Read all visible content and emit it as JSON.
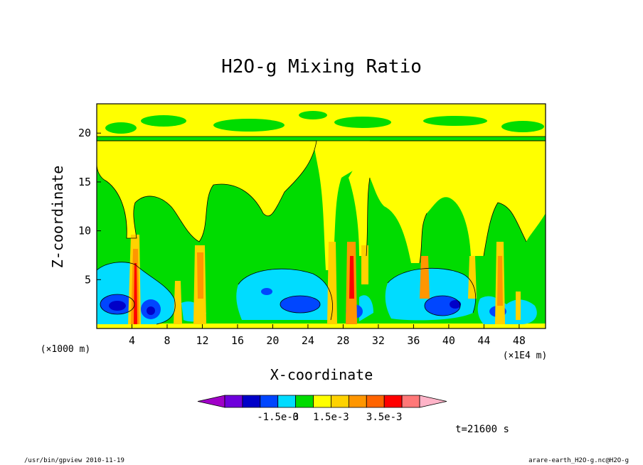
{
  "chart_data": {
    "type": "heatmap",
    "title": "H2O-g Mixing Ratio",
    "xlabel": "X-coordinate",
    "ylabel": "Z-coordinate",
    "y_unit_label": "(×1000 m)",
    "x_unit_label": "(×1E4 m)",
    "x_ticks": [
      4,
      8,
      12,
      16,
      20,
      24,
      28,
      32,
      36,
      40,
      44,
      48
    ],
    "y_ticks": [
      5,
      10,
      15,
      20
    ],
    "xlim": [
      0,
      51
    ],
    "ylim": [
      0,
      23
    ],
    "time_label": "t=21600 s",
    "colorbar": {
      "levels": [
        "-1.5e-3",
        "0",
        "1.5e-3",
        "3.5e-3"
      ],
      "colors": [
        "#a000c8",
        "#6e00dc",
        "#0000c8",
        "#0046ff",
        "#00dcff",
        "#00dc00",
        "#ffff00",
        "#ffd200",
        "#ff9600",
        "#ff6400",
        "#ff0000",
        "#ff7878",
        "#ffb4c8"
      ]
    },
    "regions": [
      {
        "name": "upper-band",
        "value": "1.5e-3",
        "color": "#ffff00",
        "z_range": [
          19,
          22.5
        ]
      },
      {
        "name": "green-field",
        "value": "0",
        "color": "#00dc00"
      },
      {
        "name": "cyan-low-blobs",
        "value": "-1.5e-3",
        "color": "#00dcff",
        "z_range": [
          0,
          6
        ]
      },
      {
        "name": "blue-cores",
        "value": "-3e-3",
        "color": "#0046ff",
        "z_range": [
          0.5,
          3
        ]
      },
      {
        "name": "updraft-columns",
        "x_positions": [
          4,
          9.5,
          12,
          27,
          29,
          30,
          37,
          45,
          46.5
        ],
        "color": "#ff9600"
      }
    ]
  },
  "footer": {
    "left": "/usr/bin/gpview   2010-11-19",
    "right": "arare-earth_H2O-g.nc@H2O-g"
  }
}
